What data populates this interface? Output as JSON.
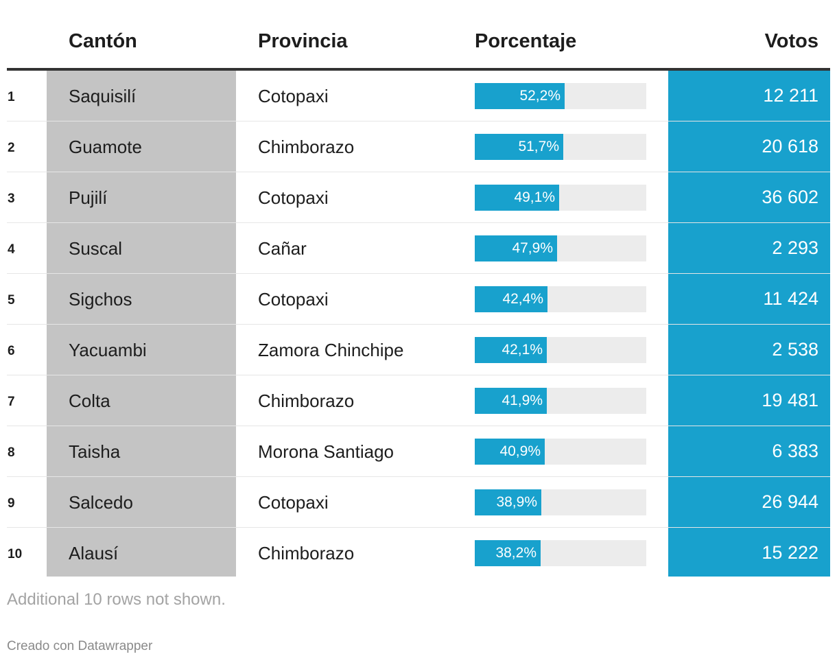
{
  "colors": {
    "accent": "#18a1cd",
    "highlight_column": "#c4c4c4",
    "bar_track": "#ececec",
    "header_rule": "#333333"
  },
  "table": {
    "headers": {
      "canton": "Cantón",
      "provincia": "Provincia",
      "porcentaje": "Porcentaje",
      "votos": "Votos"
    },
    "rows": [
      {
        "rank": "1",
        "canton": "Saquisilí",
        "provincia": "Cotopaxi",
        "porcentaje": 52.2,
        "porcentaje_label": "52,2%",
        "votos": "12 211"
      },
      {
        "rank": "2",
        "canton": "Guamote",
        "provincia": "Chimborazo",
        "porcentaje": 51.7,
        "porcentaje_label": "51,7%",
        "votos": "20 618"
      },
      {
        "rank": "3",
        "canton": "Pujilí",
        "provincia": "Cotopaxi",
        "porcentaje": 49.1,
        "porcentaje_label": "49,1%",
        "votos": "36 602"
      },
      {
        "rank": "4",
        "canton": "Suscal",
        "provincia": "Cañar",
        "porcentaje": 47.9,
        "porcentaje_label": "47,9%",
        "votos": "2 293"
      },
      {
        "rank": "5",
        "canton": "Sigchos",
        "provincia": "Cotopaxi",
        "porcentaje": 42.4,
        "porcentaje_label": "42,4%",
        "votos": "11 424"
      },
      {
        "rank": "6",
        "canton": "Yacuambi",
        "provincia": "Zamora Chinchipe",
        "porcentaje": 42.1,
        "porcentaje_label": "42,1%",
        "votos": "2 538"
      },
      {
        "rank": "7",
        "canton": "Colta",
        "provincia": "Chimborazo",
        "porcentaje": 41.9,
        "porcentaje_label": "41,9%",
        "votos": "19 481"
      },
      {
        "rank": "8",
        "canton": "Taisha",
        "provincia": "Morona Santiago",
        "porcentaje": 40.9,
        "porcentaje_label": "40,9%",
        "votos": "6 383"
      },
      {
        "rank": "9",
        "canton": "Salcedo",
        "provincia": "Cotopaxi",
        "porcentaje": 38.9,
        "porcentaje_label": "38,9%",
        "votos": "26 944"
      },
      {
        "rank": "10",
        "canton": "Alausí",
        "provincia": "Chimborazo",
        "porcentaje": 38.2,
        "porcentaje_label": "38,2%",
        "votos": "15 222"
      }
    ],
    "note": "Additional 10 rows not shown.",
    "credit": "Creado con Datawrapper"
  },
  "chart_data": {
    "type": "table",
    "columns": [
      "Cantón",
      "Provincia",
      "Porcentaje",
      "Votos"
    ],
    "rows": [
      [
        "Saquisilí",
        "Cotopaxi",
        52.2,
        12211
      ],
      [
        "Guamote",
        "Chimborazo",
        51.7,
        20618
      ],
      [
        "Pujilí",
        "Cotopaxi",
        49.1,
        36602
      ],
      [
        "Suscal",
        "Cañar",
        47.9,
        2293
      ],
      [
        "Sigchos",
        "Cotopaxi",
        42.4,
        11424
      ],
      [
        "Yacuambi",
        "Zamora Chinchipe",
        42.1,
        2538
      ],
      [
        "Colta",
        "Chimborazo",
        41.9,
        19481
      ],
      [
        "Taisha",
        "Morona Santiago",
        40.9,
        6383
      ],
      [
        "Salcedo",
        "Cotopaxi",
        38.9,
        26944
      ],
      [
        "Alausí",
        "Chimborazo",
        38.2,
        15222
      ]
    ],
    "bar_column": "Porcentaje",
    "bar_range": [
      0,
      100
    ]
  }
}
